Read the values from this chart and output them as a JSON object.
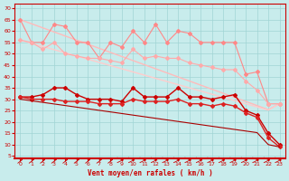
{
  "xlabel": "Vent moyen/en rafales ( km/h )",
  "bg_color": "#c8ecec",
  "grid_color": "#a0d4d4",
  "x": [
    0,
    1,
    2,
    3,
    4,
    5,
    6,
    7,
    8,
    9,
    10,
    11,
    12,
    13,
    14,
    15,
    16,
    17,
    18,
    19,
    20,
    21,
    22,
    23
  ],
  "line_straight1": [
    65,
    63.2,
    61.4,
    59.6,
    57.8,
    56.0,
    54.2,
    52.4,
    50.6,
    48.8,
    47.0,
    45.2,
    43.4,
    41.6,
    39.8,
    38.0,
    36.2,
    34.4,
    32.6,
    30.8,
    29.0,
    27.2,
    25.4,
    28
  ],
  "line_straight2": [
    56,
    54.6,
    53.2,
    51.8,
    50.4,
    49.0,
    47.6,
    46.2,
    44.8,
    43.4,
    42.0,
    40.6,
    39.2,
    37.8,
    36.4,
    35.0,
    33.6,
    32.2,
    30.8,
    29.4,
    28.0,
    26.6,
    25.2,
    28
  ],
  "line_pink_markers": [
    65,
    55,
    55,
    63,
    62,
    55,
    55,
    48,
    55,
    53,
    60,
    55,
    63,
    55,
    60,
    59,
    55,
    55,
    55,
    55,
    41,
    42,
    28,
    28
  ],
  "line_salmon_markers": [
    56,
    55,
    52,
    55,
    50,
    49,
    48,
    48,
    47,
    46,
    52,
    48,
    49,
    48,
    48,
    46,
    45,
    44,
    43,
    43,
    38,
    34,
    28,
    28
  ],
  "line_red1": [
    31,
    31,
    32,
    35,
    35,
    32,
    30,
    30,
    30,
    29,
    35,
    31,
    31,
    31,
    35,
    31,
    31,
    30,
    31,
    32,
    25,
    23,
    15,
    10
  ],
  "line_red2": [
    31,
    30,
    30,
    30,
    29,
    29,
    29,
    28,
    28,
    28,
    30,
    29,
    29,
    29,
    30,
    28,
    28,
    27,
    28,
    27,
    24,
    22,
    13,
    9
  ],
  "line_red3_straight": [
    30,
    29.3,
    28.6,
    27.9,
    27.2,
    26.5,
    25.8,
    25.1,
    24.4,
    23.7,
    23.0,
    22.3,
    21.6,
    20.9,
    20.2,
    19.5,
    18.8,
    18.1,
    17.4,
    16.7,
    16.0,
    15.3,
    10,
    9
  ],
  "color_straight1": "#ffbbbb",
  "color_straight2": "#ffcccc",
  "color_pink_markers": "#ff8888",
  "color_salmon_markers": "#ffaaaa",
  "color_red1": "#cc0000",
  "color_red2": "#dd2222",
  "color_red3": "#aa0000",
  "ylim_min": 5,
  "ylim_max": 70,
  "xlim_min": 0,
  "xlim_max": 23,
  "yticks": [
    5,
    10,
    15,
    20,
    25,
    30,
    35,
    40,
    45,
    50,
    55,
    60,
    65,
    70
  ],
  "xticks": [
    0,
    1,
    2,
    3,
    4,
    5,
    6,
    7,
    8,
    9,
    10,
    11,
    12,
    13,
    14,
    15,
    16,
    17,
    18,
    19,
    20,
    21,
    22,
    23
  ],
  "arrow_angles_deg": [
    45,
    45,
    45,
    45,
    45,
    45,
    45,
    45,
    45,
    0,
    0,
    0,
    0,
    0,
    0,
    0,
    0,
    0,
    0,
    0,
    0,
    0,
    0,
    0
  ]
}
